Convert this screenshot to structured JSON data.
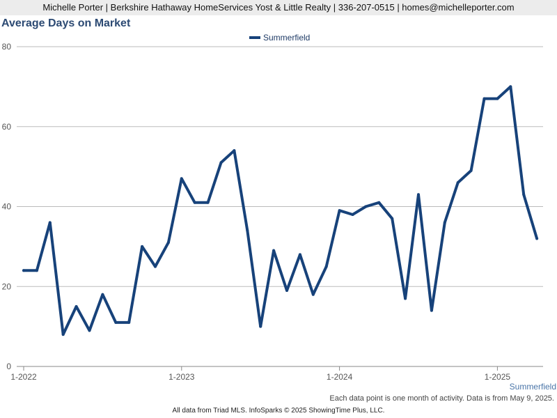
{
  "header": {
    "contact_line": "Michelle Porter | Berkshire Hathaway HomeServices Yost & Little Realty | 336-207-0515 | homes@michelleporter.com"
  },
  "chart_data": {
    "type": "line",
    "title": "Average Days on Market",
    "xlabel": "",
    "ylabel": "",
    "ylim": [
      0,
      80
    ],
    "yticks": [
      0,
      20,
      40,
      60,
      80
    ],
    "x_tick_labels": [
      "1-2022",
      "1-2023",
      "1-2024",
      "1-2025"
    ],
    "x_start": "2022-01",
    "grid": true,
    "legend_placement": "top-center",
    "colors": {
      "line": "#17427a",
      "grid": "#bbbbbb",
      "axis": "#888888"
    },
    "series": [
      {
        "name": "Summerfield",
        "x": [
          "2022-01",
          "2022-02",
          "2022-03",
          "2022-04",
          "2022-05",
          "2022-06",
          "2022-07",
          "2022-08",
          "2022-09",
          "2022-10",
          "2022-11",
          "2022-12",
          "2023-01",
          "2023-02",
          "2023-03",
          "2023-04",
          "2023-05",
          "2023-06",
          "2023-07",
          "2023-08",
          "2023-09",
          "2023-10",
          "2023-11",
          "2023-12",
          "2024-01",
          "2024-02",
          "2024-03",
          "2024-04",
          "2024-05",
          "2024-06",
          "2024-07",
          "2024-08",
          "2024-09",
          "2024-10",
          "2024-11",
          "2024-12",
          "2025-01",
          "2025-02",
          "2025-03",
          "2025-04"
        ],
        "values": [
          24,
          24,
          36,
          8,
          15,
          9,
          18,
          11,
          11,
          30,
          25,
          31,
          47,
          41,
          41,
          51,
          54,
          34,
          10,
          29,
          19,
          28,
          18,
          25,
          39,
          38,
          40,
          41,
          37,
          17,
          43,
          14,
          36,
          46,
          49,
          67,
          67,
          70,
          43,
          32
        ]
      }
    ],
    "geo_label": "Summerfield",
    "note": "Each data point is one month of activity. Data is from May 9, 2025."
  },
  "footer": {
    "text": "All data from Triad MLS. InfoSparks © 2025 ShowingTime Plus, LLC."
  }
}
